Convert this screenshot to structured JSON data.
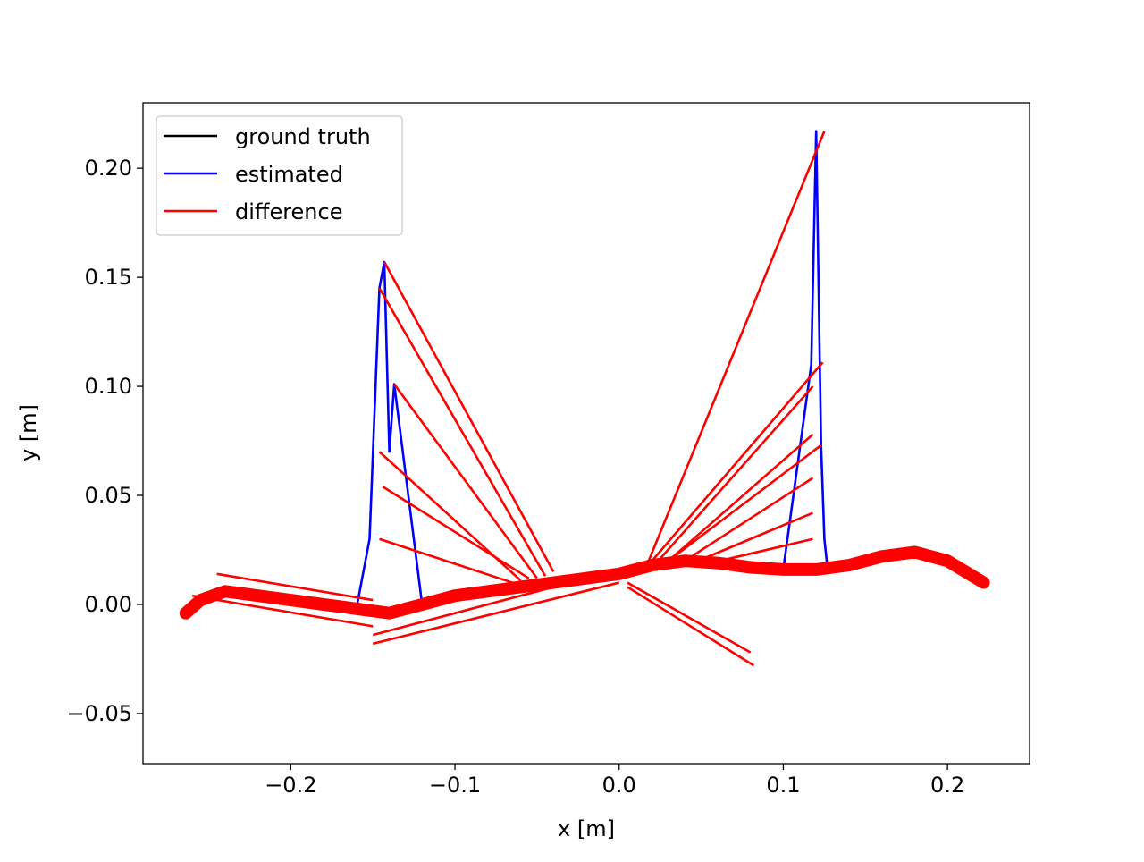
{
  "chart_data": {
    "type": "line",
    "title": "",
    "xlabel": "x [m]",
    "ylabel": "y [m]",
    "xlim": [
      -0.29,
      0.25
    ],
    "ylim": [
      -0.073,
      0.23
    ],
    "xticks": [
      -0.2,
      -0.1,
      0.0,
      0.1,
      0.2
    ],
    "xtick_labels": [
      "−0.2",
      "−0.1",
      "0.0",
      "0.1",
      "0.2"
    ],
    "yticks": [
      -0.05,
      0.0,
      0.05,
      0.1,
      0.15,
      0.2
    ],
    "ytick_labels": [
      "−0.05",
      "0.00",
      "0.05",
      "0.10",
      "0.15",
      "0.20"
    ],
    "grid": false,
    "legend_position": "top-left",
    "series": [
      {
        "name": "ground truth",
        "color": "#000000",
        "x": [
          -0.264,
          -0.255,
          -0.24,
          -0.22,
          -0.2,
          -0.18,
          -0.16,
          -0.14,
          -0.12,
          -0.1,
          -0.08,
          -0.06,
          -0.04,
          -0.02,
          0.0,
          0.02,
          0.04,
          0.06,
          0.08,
          0.1,
          0.12,
          0.14,
          0.16,
          0.18,
          0.2,
          0.222
        ],
        "y": [
          -0.004,
          0.002,
          0.006,
          0.004,
          0.002,
          0.0,
          -0.002,
          -0.004,
          0.0,
          0.004,
          0.006,
          0.008,
          0.01,
          0.012,
          0.014,
          0.018,
          0.02,
          0.019,
          0.017,
          0.016,
          0.016,
          0.018,
          0.022,
          0.024,
          0.02,
          0.01
        ]
      },
      {
        "name": "estimated",
        "color": "#0000ff",
        "x": [
          -0.264,
          -0.255,
          -0.24,
          -0.22,
          -0.2,
          -0.18,
          -0.16,
          -0.152,
          -0.146,
          -0.143,
          -0.14,
          -0.137,
          -0.12,
          -0.1,
          -0.08,
          -0.06,
          -0.04,
          -0.02,
          0.0,
          0.02,
          0.04,
          0.06,
          0.08,
          0.1,
          0.117,
          0.12,
          0.123,
          0.125,
          0.127,
          0.14,
          0.16,
          0.18,
          0.2,
          0.222
        ],
        "y": [
          -0.004,
          0.002,
          0.006,
          0.004,
          0.002,
          0.0,
          -0.002,
          0.03,
          0.145,
          0.157,
          0.07,
          0.101,
          0.0,
          0.004,
          0.006,
          0.008,
          0.01,
          0.012,
          0.014,
          0.018,
          0.02,
          0.019,
          0.017,
          0.016,
          0.11,
          0.217,
          0.073,
          0.03,
          0.016,
          0.018,
          0.022,
          0.024,
          0.02,
          0.01
        ]
      },
      {
        "name": "difference",
        "color": "#ff0000",
        "segments": [
          [
            -0.143,
            0.157,
            -0.04,
            0.015
          ],
          [
            -0.146,
            0.145,
            -0.045,
            0.013
          ],
          [
            -0.137,
            0.101,
            -0.05,
            0.012
          ],
          [
            -0.146,
            0.07,
            -0.06,
            0.011
          ],
          [
            -0.144,
            0.054,
            -0.055,
            0.012
          ],
          [
            -0.146,
            0.03,
            -0.065,
            0.01
          ],
          [
            0.125,
            0.217,
            0.018,
            0.02
          ],
          [
            0.124,
            0.111,
            0.02,
            0.02
          ],
          [
            0.123,
            0.073,
            0.03,
            0.02
          ],
          [
            0.118,
            0.1,
            0.025,
            0.021
          ],
          [
            0.118,
            0.078,
            0.03,
            0.02
          ],
          [
            0.118,
            0.058,
            0.04,
            0.02
          ],
          [
            0.118,
            0.042,
            0.045,
            0.019
          ],
          [
            0.118,
            0.03,
            0.05,
            0.018
          ],
          [
            0.082,
            -0.028,
            0.005,
            0.008
          ],
          [
            0.08,
            -0.022,
            0.005,
            0.01
          ],
          [
            -0.15,
            -0.018,
            0.0,
            0.01
          ],
          [
            -0.15,
            -0.014,
            -0.02,
            0.012
          ],
          [
            -0.245,
            0.014,
            -0.15,
            0.002
          ],
          [
            -0.26,
            0.004,
            -0.15,
            -0.01
          ]
        ]
      }
    ]
  }
}
